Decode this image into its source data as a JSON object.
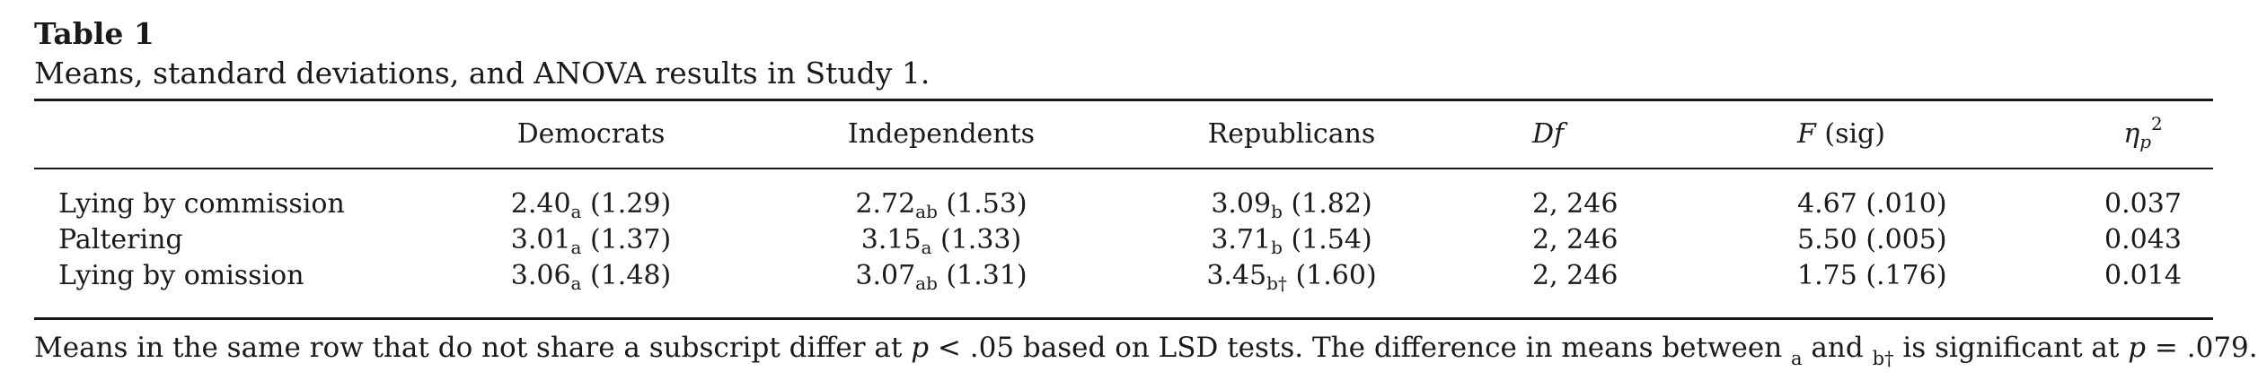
{
  "table": {
    "label": "Table 1",
    "caption": "Means, standard deviations, and ANOVA results in Study 1.",
    "headers": {
      "democrats": "Democrats",
      "independents": "Independents",
      "republicans": "Republicans",
      "df": "Df",
      "f_italic": "F",
      "f_rest": " (sig)",
      "eta": "η",
      "eta_sub": "p",
      "eta_sup": "2"
    },
    "rows": [
      {
        "label": "Lying by commission",
        "dem_mean": "2.40",
        "dem_sub": "a",
        "dem_sd": " (1.29)",
        "ind_mean": "2.72",
        "ind_sub": "ab",
        "ind_sd": " (1.53)",
        "rep_mean": "3.09",
        "rep_sub": "b",
        "rep_sd": " (1.82)",
        "df": "2, 246",
        "f": "4.67 (.010)",
        "eta": "0.037"
      },
      {
        "label": "Paltering",
        "dem_mean": "3.01",
        "dem_sub": "a",
        "dem_sd": " (1.37)",
        "ind_mean": "3.15",
        "ind_sub": "a",
        "ind_sd": " (1.33)",
        "rep_mean": "3.71",
        "rep_sub": "b",
        "rep_sd": " (1.54)",
        "df": "2, 246",
        "f": "5.50 (.005)",
        "eta": "0.043"
      },
      {
        "label": "Lying by omission",
        "dem_mean": "3.06",
        "dem_sub": "a",
        "dem_sd": " (1.48)",
        "ind_mean": "3.07",
        "ind_sub": "ab",
        "ind_sd": " (1.31)",
        "rep_mean": "3.45",
        "rep_sub": "b†",
        "rep_sd": " (1.60)",
        "df": "2, 246",
        "f": "1.75 (.176)",
        "eta": "0.014"
      }
    ],
    "note": {
      "part1": "Means in the same row that do not share a subscript differ at ",
      "p1": "p",
      "part2": " < .05 based on LSD tests. The difference in means between ",
      "sub_a": "a",
      "part3": " and ",
      "sub_b": "b†",
      "part4": " is significant at ",
      "p2": "p",
      "part5": " = .079."
    }
  }
}
